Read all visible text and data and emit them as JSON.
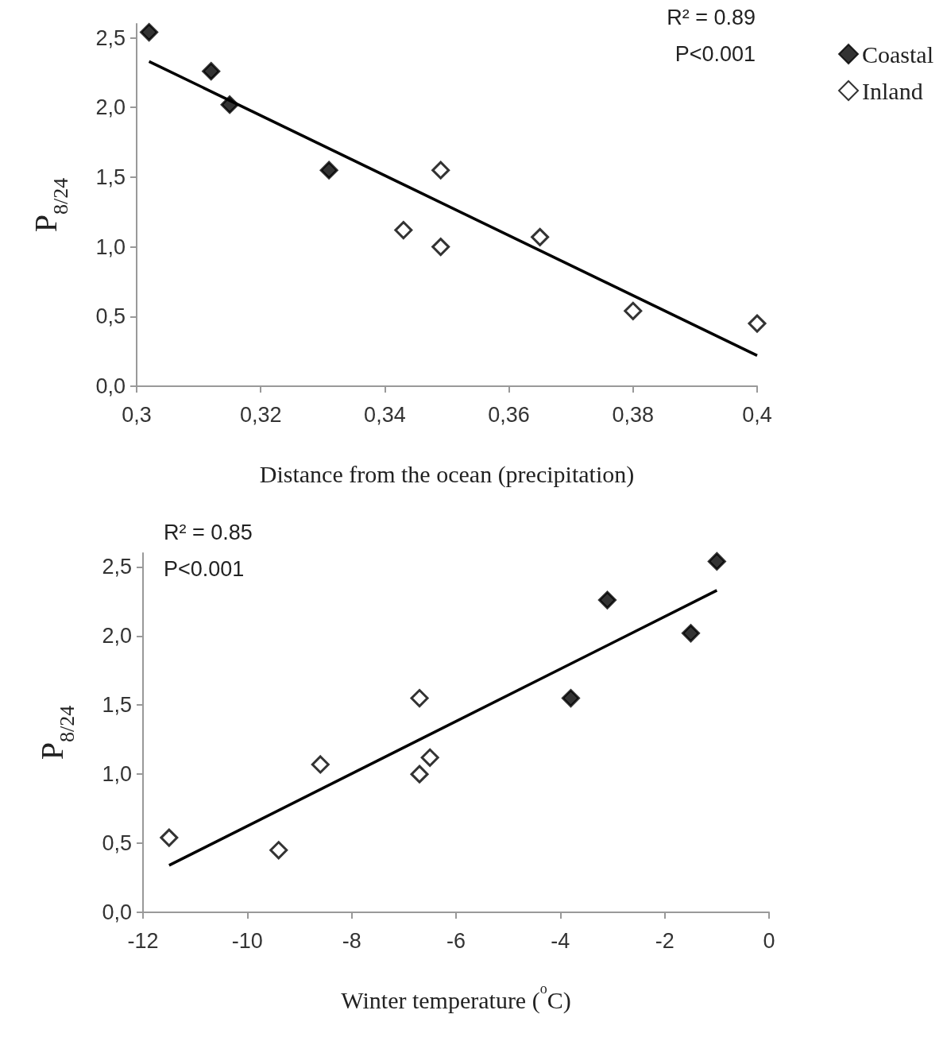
{
  "chart_data": [
    {
      "type": "scatter",
      "xlabel": "Distance from the ocean (precipitation)",
      "ylabel": "P$_{8/24}$",
      "annotations": [
        "R² = 0.89",
        "P<0.001"
      ],
      "legend": "top right",
      "grid": false,
      "xlim": [
        0.3,
        0.4
      ],
      "xticks": [
        {
          "value": 0.3,
          "label": "0,3"
        },
        {
          "value": 0.32,
          "label": "0,32"
        },
        {
          "value": 0.34,
          "label": "0,34"
        },
        {
          "value": 0.36,
          "label": "0,36"
        },
        {
          "value": 0.38,
          "label": "0,38"
        },
        {
          "value": 0.4,
          "label": "0,4"
        }
      ],
      "ylim": [
        0,
        2.6
      ],
      "yticks": [
        {
          "value": 0,
          "label": "0,0"
        },
        {
          "value": 0.5,
          "label": "0,5"
        },
        {
          "value": 1,
          "label": "1,0"
        },
        {
          "value": 1.5,
          "label": "1,5"
        },
        {
          "value": 2,
          "label": "2,0"
        },
        {
          "value": 2.5,
          "label": "2,5"
        }
      ],
      "series": [
        {
          "name": "Coastal",
          "color": "#000000",
          "marker": "diamond",
          "x": [
            0.302,
            0.312,
            0.315,
            0.331
          ],
          "values": [
            2.54,
            2.26,
            2.02,
            1.55
          ]
        },
        {
          "name": "Inland",
          "color": "#ffffff",
          "marker": "diamond",
          "x": [
            0.343,
            0.349,
            0.349,
            0.365,
            0.38,
            0.4
          ],
          "values": [
            1.12,
            1.55,
            1.0,
            1.07,
            0.54,
            0.45
          ]
        },
        {
          "type": "line",
          "color": "#000000",
          "marker": "none",
          "x": [
            0.302,
            0.4
          ],
          "values": [
            2.33,
            0.22
          ]
        }
      ]
    },
    {
      "type": "scatter",
      "xlabel": "Winter temperature ($^{o}$C)",
      "ylabel": "P$_{8/24}$",
      "annotations": [
        "R² = 0.85",
        "P<0.001"
      ],
      "grid": false,
      "xlim": [
        -12,
        0
      ],
      "xticks": [
        -12,
        -10,
        -8,
        -6,
        -4,
        -2,
        0
      ],
      "ylim": [
        0,
        2.6
      ],
      "yticks": [
        {
          "value": 0,
          "label": "0,0"
        },
        {
          "value": 0.5,
          "label": "0,5"
        },
        {
          "value": 1,
          "label": "1,0"
        },
        {
          "value": 1.5,
          "label": "1,5"
        },
        {
          "value": 2,
          "label": "2,0"
        },
        {
          "value": 2.5,
          "label": "2,5"
        }
      ],
      "series": [
        {
          "color": "#000000",
          "marker": "diamond",
          "x": [
            -1.0,
            -3.1,
            -1.5,
            -3.8
          ],
          "values": [
            2.54,
            2.26,
            2.02,
            1.55
          ]
        },
        {
          "color": "#ffffff",
          "marker": "diamond",
          "x": [
            -6.7,
            -6.5,
            -6.7,
            -8.6,
            -11.5,
            -9.4
          ],
          "values": [
            1.55,
            1.12,
            1.0,
            1.07,
            0.54,
            0.45
          ]
        },
        {
          "type": "line",
          "color": "#000000",
          "marker": "none",
          "x": [
            -11.5,
            -1.0
          ],
          "values": [
            0.34,
            2.33
          ]
        }
      ]
    }
  ]
}
